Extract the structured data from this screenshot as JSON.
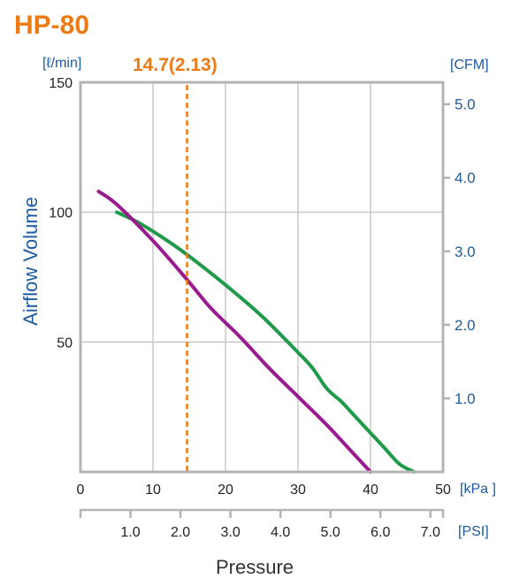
{
  "title": "HP-80",
  "colors": {
    "title": "#ee7a12",
    "marker": "#ee7a12",
    "axis_text": "#1e5aa0",
    "grid": "#c8c8c8",
    "frame": "#b4b4b4"
  },
  "chart_data": {
    "type": "line",
    "title": "HP-80",
    "xlabel": "Pressure",
    "ylabel": "Airflow Volume",
    "x_unit": "kPa",
    "x2_unit": "PSI",
    "y_unit": "ℓ/min",
    "y2_unit": "CFM",
    "xlim": [
      0,
      50
    ],
    "ylim": [
      0,
      150
    ],
    "grid": true,
    "x_ticks": [
      "0",
      "10",
      "20",
      "30",
      "40",
      "50"
    ],
    "y_ticks": [
      "50",
      "100",
      "150"
    ],
    "x2_ticks": [
      "1.0",
      "2.0",
      "3.0",
      "4.0",
      "5.0",
      "6.0",
      "7.0"
    ],
    "y2_ticks": [
      "1.0",
      "2.0",
      "3.0",
      "4.0",
      "5.0"
    ],
    "marker": {
      "x": 14.7,
      "label": "14.7(2.13)"
    },
    "series": [
      {
        "color": "#1f9a4a",
        "x": [
          5,
          8,
          12,
          15,
          20,
          25,
          30,
          32,
          34,
          36,
          38,
          40,
          42,
          44,
          46
        ],
        "y": [
          100,
          96,
          89,
          83,
          72,
          60,
          46,
          40,
          32,
          27,
          21,
          15,
          9,
          3,
          0
        ]
      },
      {
        "color": "#9a1b8e",
        "x": [
          2.5,
          5,
          10,
          14.7,
          18,
          22,
          26,
          30,
          34,
          37,
          40
        ],
        "y": [
          108,
          103,
          89,
          74,
          63,
          52,
          40,
          29,
          18,
          9,
          0
        ]
      }
    ]
  }
}
